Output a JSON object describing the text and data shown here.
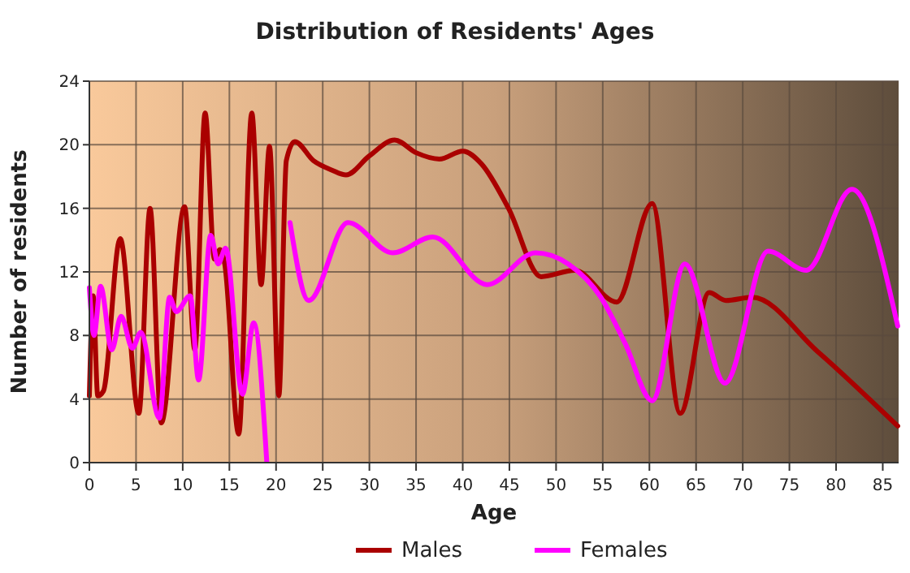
{
  "chart_data": {
    "type": "line",
    "title": "Distribution of Residents' Ages",
    "xlabel": "Age",
    "ylabel": "Number of residents",
    "xlim": [
      0,
      86.7
    ],
    "ylim": [
      0,
      24
    ],
    "xticks": [
      0,
      5,
      10,
      15,
      20,
      25,
      30,
      35,
      40,
      45,
      50,
      55,
      60,
      65,
      70,
      75,
      80,
      85
    ],
    "yticks": [
      0,
      4,
      8,
      12,
      16,
      20,
      24
    ],
    "grid": true,
    "legend": "bottom",
    "line_style": "solid",
    "marker": "none",
    "series": [
      {
        "name": "Males",
        "color": "#aa0000",
        "x": [
          0,
          0.4,
          0.9,
          1.5,
          3.3,
          5.3,
          6.5,
          7.7,
          10.2,
          11.3,
          12.4,
          13.4,
          14,
          14.5,
          16,
          17.4,
          18.4,
          19.3,
          20.3,
          21.1,
          22,
          24,
          26,
          27.5,
          30,
          32.7,
          35,
          37.5,
          40,
          42,
          44.9,
          48.4,
          52,
          56.5,
          60.3,
          63.3,
          66.4,
          68.2,
          71,
          78,
          86.6
        ],
        "values": [
          4.2,
          10.5,
          4.2,
          4.5,
          14.1,
          3.1,
          16,
          2.5,
          16.1,
          7.1,
          22,
          12.8,
          13.4,
          12.5,
          1.8,
          22,
          11.2,
          19.9,
          4.2,
          19,
          20.2,
          19,
          18.4,
          18.1,
          19.3,
          20.3,
          19.5,
          19.1,
          19.6,
          18.8,
          16,
          11.7,
          12.1,
          10.1,
          16.3,
          3.1,
          10.7,
          10.2,
          10.4,
          7,
          2.3
        ]
      },
      {
        "name": "Females",
        "color": "#ff00ff",
        "x": [
          0,
          0.5,
          1.2,
          2.4,
          3.4,
          4.6,
          5.5,
          7.5,
          8.6,
          9.3,
          10.8,
          11.7,
          13,
          13.8,
          14.6,
          16.4,
          17.6,
          19,
          20.4,
          21.5,
          23.5,
          27.7,
          32.5,
          36.8,
          42.6,
          47.8,
          51.3,
          54.8,
          57.4,
          60.3,
          63.8,
          68.1,
          72.7,
          76.8,
          81.7,
          86.6
        ],
        "values": [
          11,
          8,
          11.1,
          7.1,
          9.2,
          7.2,
          8.2,
          2.8,
          10.4,
          9.5,
          10.5,
          5.2,
          14.3,
          12.5,
          13.5,
          4.3,
          8.8,
          0.1,
          null,
          15.1,
          10.2,
          15.1,
          13.2,
          14.2,
          11.2,
          13.2,
          12.5,
          10.4,
          7.5,
          3.9,
          12.5,
          5,
          13.3,
          12.1,
          17.2,
          8.6
        ]
      }
    ]
  }
}
